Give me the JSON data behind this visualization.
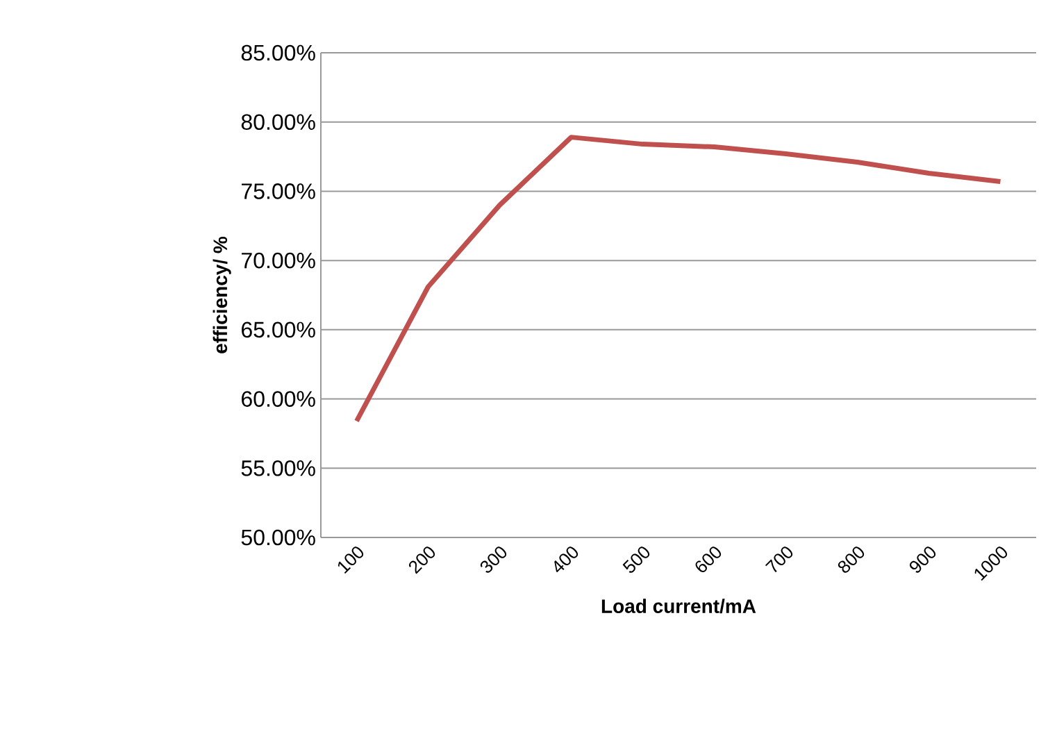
{
  "chart_data": {
    "type": "line",
    "xlabel": "Load current/mA",
    "ylabel": "efficiency/ %",
    "categories": [
      "100",
      "200",
      "300",
      "400",
      "500",
      "600",
      "700",
      "800",
      "900",
      "1000"
    ],
    "series": [
      {
        "color": "#c0504d",
        "values": [
          58.4,
          68.1,
          74.0,
          78.9,
          78.4,
          78.2,
          77.7,
          77.1,
          76.3,
          75.7
        ]
      }
    ],
    "ylim": [
      50,
      85
    ],
    "yticks": [
      {
        "value": 50,
        "label": "50.00%"
      },
      {
        "value": 55,
        "label": "55.00%"
      },
      {
        "value": 60,
        "label": "60.00%"
      },
      {
        "value": 65,
        "label": "65.00%"
      },
      {
        "value": 70,
        "label": "70.00%"
      },
      {
        "value": 75,
        "label": "75.00%"
      },
      {
        "value": 80,
        "label": "80.00%"
      },
      {
        "value": 85,
        "label": "85.00%"
      }
    ],
    "grid": "y",
    "marker": "none",
    "line_style": "solid"
  }
}
